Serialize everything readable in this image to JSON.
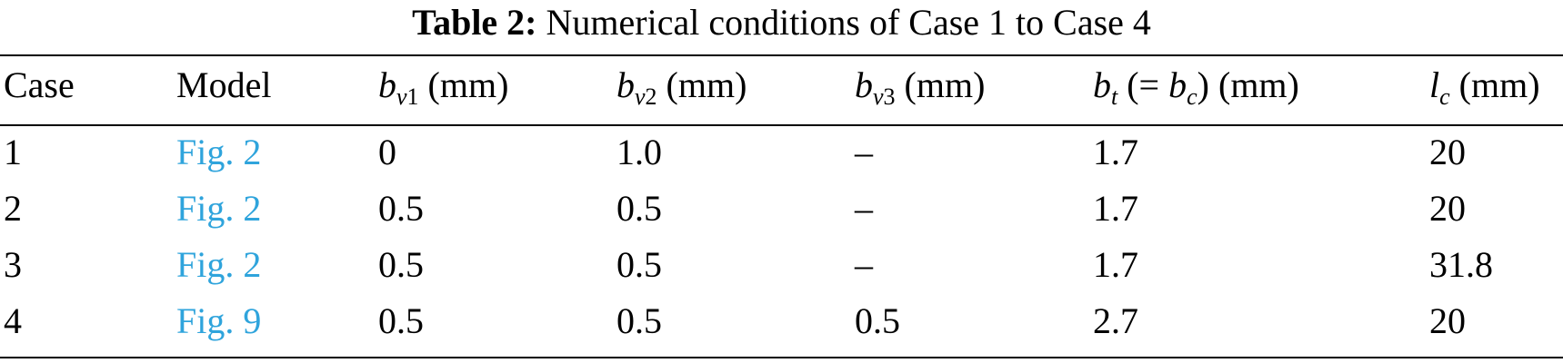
{
  "caption": {
    "label": "Table 2:",
    "text": "Numerical conditions of Case 1 to Case 4"
  },
  "table": {
    "headers": {
      "case": "Case",
      "model": "Model",
      "bv1": {
        "var": "b",
        "sub_var": "v",
        "sub_num": "1",
        "unit": "(mm)"
      },
      "bv2": {
        "var": "b",
        "sub_var": "v",
        "sub_num": "2",
        "unit": "(mm)"
      },
      "bv3": {
        "var": "b",
        "sub_var": "v",
        "sub_num": "3",
        "unit": "(mm)"
      },
      "bt": {
        "var": "b",
        "sub_var": "t",
        "eq_open": "(=",
        "var2": "b",
        "sub_var2": "c",
        "eq_close": ")",
        "unit": "(mm)"
      },
      "lc": {
        "var": "l",
        "sub_var": "c",
        "unit": "(mm)"
      }
    },
    "rows": [
      {
        "case": "1",
        "model": "Fig. 2",
        "bv1": "0",
        "bv2": "1.0",
        "bv3": "–",
        "bt": "1.7",
        "lc": "20"
      },
      {
        "case": "2",
        "model": "Fig. 2",
        "bv1": "0.5",
        "bv2": "0.5",
        "bv3": "–",
        "bt": "1.7",
        "lc": "20"
      },
      {
        "case": "3",
        "model": "Fig. 2",
        "bv1": "0.5",
        "bv2": "0.5",
        "bv3": "–",
        "bt": "1.7",
        "lc": "31.8"
      },
      {
        "case": "4",
        "model": "Fig. 9",
        "bv1": "0.5",
        "bv2": "0.5",
        "bv3": "0.5",
        "bt": "2.7",
        "lc": "20"
      }
    ],
    "link_color": "#2fa4dc"
  }
}
